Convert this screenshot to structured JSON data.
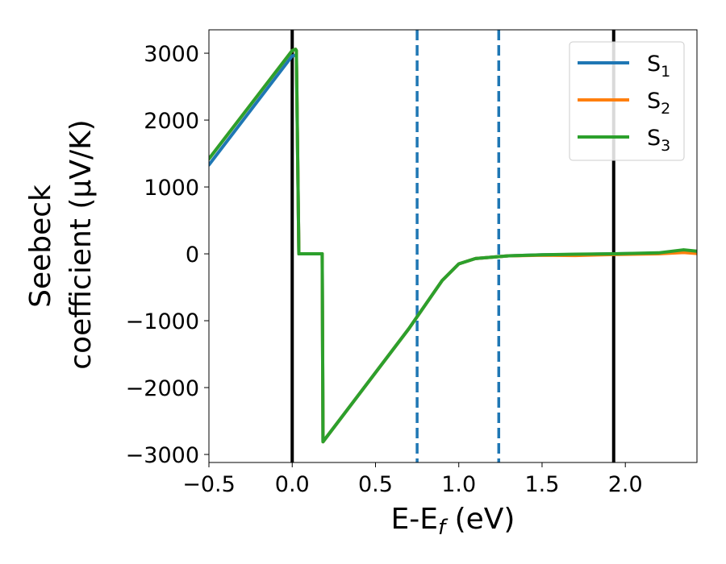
{
  "chart_data": {
    "type": "line",
    "title": "",
    "xlabel": "E-E",
    "xlabel_subscript": "f",
    "xlabel_unit": " (eV)",
    "ylabel_line1": "Seebeck",
    "ylabel_line2": "coefficient  (μV/K)",
    "xlim": [
      -0.5,
      2.43
    ],
    "ylim": [
      -3120,
      3350
    ],
    "xticks": [
      -0.5,
      0.0,
      0.5,
      1.0,
      1.5,
      2.0
    ],
    "xtick_labels": [
      "−0.5",
      "0.0",
      "0.5",
      "1.0",
      "1.5",
      "2.0"
    ],
    "yticks": [
      -3000,
      -2000,
      -1000,
      0,
      1000,
      2000,
      3000
    ],
    "ytick_labels": [
      "−3000",
      "−2000",
      "−1000",
      "0",
      "1000",
      "2000",
      "3000"
    ],
    "grid": false,
    "legend_position": "top-right",
    "vertical_lines": [
      {
        "x": 0.0,
        "color": "#000000",
        "style": "solid"
      },
      {
        "x": 1.93,
        "color": "#000000",
        "style": "solid"
      },
      {
        "x": 0.75,
        "color": "#1f77b4",
        "style": "dashed"
      },
      {
        "x": 1.24,
        "color": "#1f77b4",
        "style": "dashed"
      }
    ],
    "series": [
      {
        "name": "S",
        "subscript": "1",
        "color": "#1f77b4",
        "x": [
          -0.5,
          0.0,
          0.02,
          0.025,
          0.04,
          0.18,
          0.185,
          0.7,
          0.9,
          1.0,
          1.1,
          1.3,
          1.5,
          1.7,
          1.93,
          2.2,
          2.35,
          2.43
        ],
        "y": [
          1330,
          2960,
          2970,
          2950,
          0,
          0,
          -2810,
          -1120,
          -400,
          -150,
          -70,
          -30,
          -15,
          -10,
          0,
          10,
          40,
          20
        ]
      },
      {
        "name": "S",
        "subscript": "2",
        "color": "#ff7f0e",
        "x": [
          -0.5,
          0.0,
          0.02,
          0.025,
          0.04,
          0.18,
          0.185,
          0.7,
          0.9,
          1.0,
          1.1,
          1.3,
          1.5,
          1.7,
          1.93,
          2.2,
          2.35,
          2.43
        ],
        "y": [
          1420,
          3040,
          3060,
          3040,
          0,
          0,
          -2810,
          -1120,
          -400,
          -150,
          -70,
          -30,
          -20,
          -25,
          -10,
          0,
          20,
          5
        ]
      },
      {
        "name": "S",
        "subscript": "3",
        "color": "#2ca02c",
        "x": [
          -0.5,
          0.0,
          0.02,
          0.025,
          0.04,
          0.18,
          0.185,
          0.7,
          0.9,
          1.0,
          1.1,
          1.3,
          1.5,
          1.7,
          1.93,
          2.2,
          2.35,
          2.43
        ],
        "y": [
          1420,
          3040,
          3060,
          3040,
          0,
          0,
          -2810,
          -1120,
          -400,
          -150,
          -70,
          -30,
          -15,
          -5,
          0,
          15,
          60,
          40
        ]
      }
    ]
  }
}
